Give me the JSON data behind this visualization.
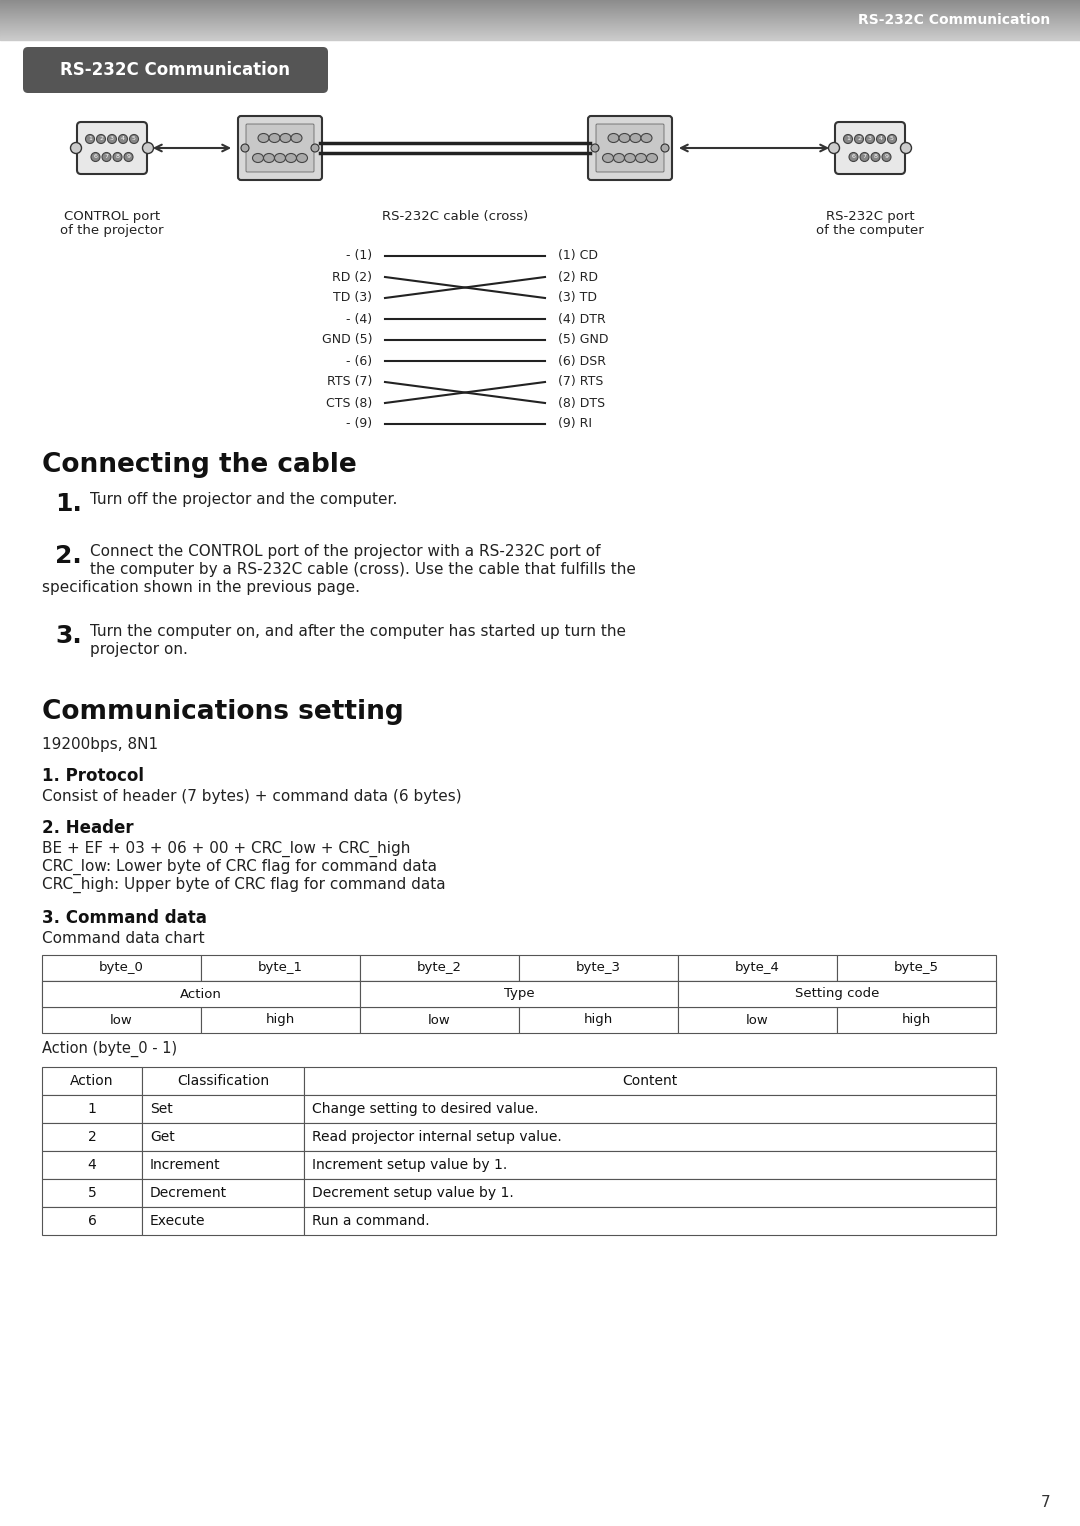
{
  "header_bar_text": "RS-232C Communication",
  "section_title_text": "RS-232C Communication",
  "page_bg": "#ffffff",
  "page_number": "7",
  "connecting_title": "Connecting the cable",
  "comms_title": "Communications setting",
  "comms_setting": "19200bps, 8N1",
  "protocol_title": "1. Protocol",
  "protocol_text": "Consist of header (7 bytes) + command data (6 bytes)",
  "header_title": "2. Header",
  "header_text1": "BE + EF + 03 + 06 + 00 + CRC_low + CRC_high",
  "header_text2": "CRC_low: Lower byte of CRC flag for command data",
  "header_text3": "CRC_high: Upper byte of CRC flag for command data",
  "command_title": "3. Command data",
  "command_sub": "Command data chart",
  "action_note": "Action (byte_0 - 1)",
  "step1": "Turn off the projector and the computer.",
  "step2_line1": "Connect the CONTROL port of the projector with a RS-232C port of",
  "step2_line2": "the computer by a RS-232C cable (cross). Use the cable that fulfills the",
  "step2_line3": "specification shown in the previous page.",
  "step3_line1": "Turn the computer on, and after the computer has started up turn the",
  "step3_line2": "projector on.",
  "caption_control_1": "CONTROL port",
  "caption_control_2": "of the projector",
  "caption_cable": "RS-232C cable (cross)",
  "caption_rs232c_1": "RS-232C port",
  "caption_rs232c_2": "of the computer",
  "wire_labels_left": [
    "- (1)",
    "RD (2)",
    "TD (3)",
    "- (4)",
    "GND (5)",
    "- (6)",
    "RTS (7)",
    "CTS (8)",
    "- (9)"
  ],
  "wire_labels_right": [
    "(1) CD",
    "(2) RD",
    "(3) TD",
    "(4) DTR",
    "(5) GND",
    "(6) DSR",
    "(7) RTS",
    "(8) DTS",
    "(9) RI"
  ],
  "byte_row1": [
    "byte_0",
    "byte_1",
    "byte_2",
    "byte_3",
    "byte_4",
    "byte_5"
  ],
  "byte_row2": [
    [
      "Action",
      2
    ],
    [
      "Type",
      2
    ],
    [
      "Setting code",
      2
    ]
  ],
  "byte_row3": [
    "low",
    "high",
    "low",
    "high",
    "low",
    "high"
  ],
  "action_table_headers": [
    "Action",
    "Classification",
    "Content"
  ],
  "action_table_rows": [
    [
      "1",
      "Set",
      "Change setting to desired value."
    ],
    [
      "2",
      "Get",
      "Read projector internal setup value."
    ],
    [
      "4",
      "Increment",
      "Increment setup value by 1."
    ],
    [
      "5",
      "Decrement",
      "Decrement setup value by 1."
    ],
    [
      "6",
      "Execute",
      "Run a command."
    ]
  ]
}
